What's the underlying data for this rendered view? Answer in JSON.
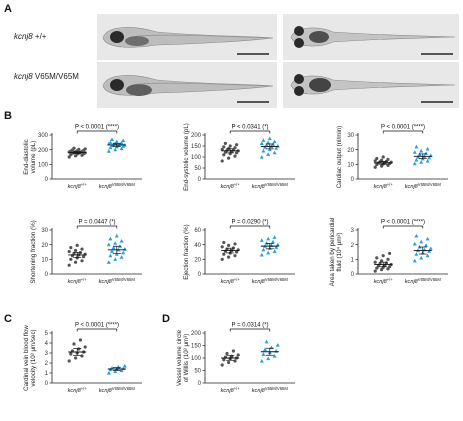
{
  "panels": {
    "a": "A",
    "b": "B",
    "c": "C",
    "d": "D"
  },
  "panel_a": {
    "row_labels": [
      {
        "gene": "kcnj8",
        "genotype": " +/+"
      },
      {
        "gene": "kcnj8",
        "genotype": " V65M/V65M"
      }
    ]
  },
  "colors": {
    "wildtype": "#555555",
    "mutant": "#2b9fdb",
    "axis": "#222222"
  },
  "chart_data": [
    {
      "id": "edv",
      "type": "scatter",
      "ylabel": "End-diastolic volume (pL)",
      "ylim": [
        0,
        300
      ],
      "yticks": [
        0,
        100,
        200,
        300
      ],
      "categories": [
        "kcnj8",
        "kcnj8"
      ],
      "category_sup": [
        "+/+",
        "V65M/V65M"
      ],
      "pvalue": "P < 0.0001 (****)",
      "series": [
        {
          "group": "wt",
          "mean": 180,
          "values": [
            150,
            158,
            162,
            166,
            170,
            172,
            175,
            176,
            178,
            180,
            182,
            184,
            186,
            188,
            190,
            192,
            195,
            198,
            202,
            205,
            210
          ]
        },
        {
          "group": "mut",
          "mean": 232,
          "values": [
            190,
            200,
            208,
            214,
            220,
            224,
            228,
            230,
            232,
            235,
            238,
            240,
            243,
            246,
            250,
            255,
            262,
            270
          ]
        }
      ]
    },
    {
      "id": "esv",
      "type": "scatter",
      "ylabel": "End-systolic volume (pL)",
      "ylim": [
        0,
        200
      ],
      "yticks": [
        0,
        50,
        100,
        150,
        200
      ],
      "categories": [
        "kcnj8",
        "kcnj8"
      ],
      "category_sup": [
        "+/+",
        "V65M/V65M"
      ],
      "pvalue": "P < 0.0341 (*)",
      "series": [
        {
          "group": "wt",
          "mean": 128,
          "values": [
            82,
            95,
            104,
            110,
            115,
            119,
            122,
            125,
            128,
            130,
            132,
            135,
            138,
            142,
            146,
            150,
            156,
            162
          ]
        },
        {
          "group": "mut",
          "mean": 148,
          "values": [
            100,
            112,
            120,
            128,
            134,
            140,
            145,
            148,
            150,
            154,
            158,
            162,
            166,
            170,
            176,
            184
          ]
        }
      ]
    },
    {
      "id": "co",
      "type": "scatter",
      "ylabel": "Cardiac output (nl/min)",
      "ylim": [
        0,
        30
      ],
      "yticks": [
        0,
        10,
        20,
        30
      ],
      "categories": [
        "kcnj8",
        "kcnj8"
      ],
      "category_sup": [
        "+/+",
        "V65M/V65M"
      ],
      "pvalue": "P < 0.0001 (****)",
      "series": [
        {
          "group": "wt",
          "mean": 11,
          "values": [
            8,
            8.8,
            9.3,
            9.8,
            10.2,
            10.6,
            10.9,
            11.1,
            11.4,
            11.7,
            12,
            12.4,
            12.8,
            13.3,
            14,
            15
          ]
        },
        {
          "group": "mut",
          "mean": 15.5,
          "values": [
            10.5,
            11.5,
            12.3,
            13,
            13.8,
            14.5,
            15,
            15.5,
            16,
            16.8,
            17.5,
            18.3,
            19.2,
            20.5,
            22
          ]
        }
      ]
    },
    {
      "id": "sf",
      "type": "scatter",
      "ylabel": "Shortening fraction (%)",
      "ylim": [
        0,
        30
      ],
      "yticks": [
        0,
        10,
        20,
        30
      ],
      "categories": [
        "kcnj8",
        "kcnj8"
      ],
      "category_sup": [
        "+/+",
        "V65M/V65M"
      ],
      "pvalue": "P = 0.0447 (*)",
      "series": [
        {
          "group": "wt",
          "mean": 13,
          "values": [
            6,
            8,
            9,
            10,
            11,
            11.8,
            12.5,
            13,
            13.5,
            14,
            14.6,
            15.3,
            16,
            17,
            18,
            19.5
          ]
        },
        {
          "group": "mut",
          "mean": 16.5,
          "values": [
            8,
            10,
            11.5,
            12.5,
            13.5,
            14.5,
            15.5,
            16.5,
            17,
            18,
            19,
            20,
            21,
            22.5,
            24,
            26
          ]
        }
      ]
    },
    {
      "id": "ef",
      "type": "scatter",
      "ylabel": "Ejection fraction (%)",
      "ylim": [
        0,
        60
      ],
      "yticks": [
        0,
        20,
        40,
        60
      ],
      "categories": [
        "kcnj8",
        "kcnj8"
      ],
      "category_sup": [
        "+/+",
        "V65M/V65M"
      ],
      "pvalue": "P = 0.0290 (*)",
      "series": [
        {
          "group": "wt",
          "mean": 32,
          "values": [
            20,
            23,
            25,
            27,
            28.5,
            30,
            31,
            32,
            33,
            34,
            35.5,
            37,
            39,
            41,
            43
          ]
        },
        {
          "group": "mut",
          "mean": 38,
          "values": [
            26,
            29,
            31,
            33,
            35,
            36.5,
            38,
            39,
            40,
            42,
            44,
            46,
            48,
            50
          ]
        }
      ]
    },
    {
      "id": "area",
      "type": "scatter",
      "ylabel": "Area taken by pericardial fluid (10⁴ μm²)",
      "ylim": [
        0,
        3
      ],
      "yticks": [
        0,
        1,
        2,
        3
      ],
      "categories": [
        "kcnj8",
        "kcnj8"
      ],
      "category_sup": [
        "+/+",
        "V65M/V65M"
      ],
      "pvalue": "P < 0.0001 (****)",
      "series": [
        {
          "group": "wt",
          "mean": 0.65,
          "values": [
            0.2,
            0.3,
            0.35,
            0.4,
            0.45,
            0.5,
            0.55,
            0.6,
            0.65,
            0.7,
            0.75,
            0.8,
            0.9,
            1.0,
            1.1,
            1.25,
            1.4
          ]
        },
        {
          "group": "mut",
          "mean": 1.6,
          "values": [
            0.9,
            1.1,
            1.25,
            1.35,
            1.45,
            1.55,
            1.6,
            1.65,
            1.75,
            1.85,
            1.95,
            2.05,
            2.2,
            2.4,
            2.6
          ]
        }
      ]
    },
    {
      "id": "cv",
      "type": "scatter",
      "ylabel": "Cardinal vein blood flow velocity (10³ μm/sec)",
      "ylim": [
        0,
        5
      ],
      "yticks": [
        0,
        1,
        2,
        3,
        4,
        5
      ],
      "categories": [
        "kcnj8",
        "kcnj8"
      ],
      "category_sup": [
        "+/+",
        "V65M/V65M"
      ],
      "pvalue": "P < 0.0001 (****)",
      "series": [
        {
          "group": "wt",
          "mean": 3.1,
          "values": [
            2.2,
            2.5,
            2.7,
            2.9,
            3.0,
            3.1,
            3.2,
            3.4,
            3.6,
            3.9,
            4.3
          ]
        },
        {
          "group": "mut",
          "mean": 1.4,
          "values": [
            1.0,
            1.15,
            1.25,
            1.35,
            1.4,
            1.45,
            1.5,
            1.6,
            1.7
          ]
        }
      ]
    },
    {
      "id": "vv",
      "type": "scatter",
      "ylabel": "Vessel volume circle of Willis (10³ μm³)",
      "ylim": [
        0,
        200
      ],
      "yticks": [
        0,
        50,
        100,
        150,
        200
      ],
      "categories": [
        "kcnj8",
        "kcnj8"
      ],
      "category_sup": [
        "+/+",
        "V65M/V65M"
      ],
      "pvalue": "P = 0.0314 (*)",
      "series": [
        {
          "group": "wt",
          "mean": 100,
          "values": [
            72,
            82,
            88,
            93,
            97,
            100,
            103,
            107,
            112,
            118,
            128
          ]
        },
        {
          "group": "mut",
          "mean": 125,
          "values": [
            88,
            98,
            108,
            115,
            122,
            128,
            134,
            142,
            152,
            165
          ]
        }
      ]
    }
  ]
}
